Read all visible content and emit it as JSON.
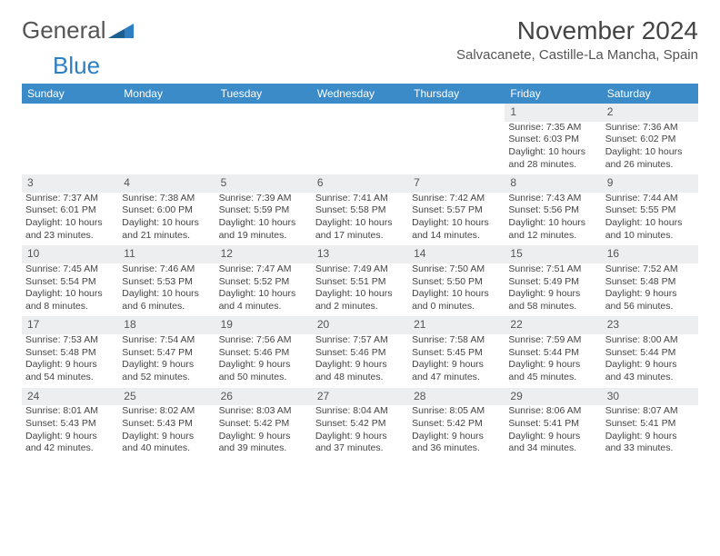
{
  "logo": {
    "word1": "General",
    "word2": "Blue",
    "fill_color": "#2d7fc1",
    "text_color_gray": "#555555"
  },
  "header": {
    "month": "November 2024",
    "location": "Salvacanete, Castille-La Mancha, Spain"
  },
  "colors": {
    "header_bg": "#3b8bc9",
    "header_fg": "#ffffff",
    "daynum_bg": "#eceef0",
    "body_text": "#444444"
  },
  "weekdays": [
    "Sunday",
    "Monday",
    "Tuesday",
    "Wednesday",
    "Thursday",
    "Friday",
    "Saturday"
  ],
  "weeks": [
    [
      null,
      null,
      null,
      null,
      null,
      {
        "n": "1",
        "sunrise": "Sunrise: 7:35 AM",
        "sunset": "Sunset: 6:03 PM",
        "day1": "Daylight: 10 hours",
        "day2": "and 28 minutes."
      },
      {
        "n": "2",
        "sunrise": "Sunrise: 7:36 AM",
        "sunset": "Sunset: 6:02 PM",
        "day1": "Daylight: 10 hours",
        "day2": "and 26 minutes."
      }
    ],
    [
      {
        "n": "3",
        "sunrise": "Sunrise: 7:37 AM",
        "sunset": "Sunset: 6:01 PM",
        "day1": "Daylight: 10 hours",
        "day2": "and 23 minutes."
      },
      {
        "n": "4",
        "sunrise": "Sunrise: 7:38 AM",
        "sunset": "Sunset: 6:00 PM",
        "day1": "Daylight: 10 hours",
        "day2": "and 21 minutes."
      },
      {
        "n": "5",
        "sunrise": "Sunrise: 7:39 AM",
        "sunset": "Sunset: 5:59 PM",
        "day1": "Daylight: 10 hours",
        "day2": "and 19 minutes."
      },
      {
        "n": "6",
        "sunrise": "Sunrise: 7:41 AM",
        "sunset": "Sunset: 5:58 PM",
        "day1": "Daylight: 10 hours",
        "day2": "and 17 minutes."
      },
      {
        "n": "7",
        "sunrise": "Sunrise: 7:42 AM",
        "sunset": "Sunset: 5:57 PM",
        "day1": "Daylight: 10 hours",
        "day2": "and 14 minutes."
      },
      {
        "n": "8",
        "sunrise": "Sunrise: 7:43 AM",
        "sunset": "Sunset: 5:56 PM",
        "day1": "Daylight: 10 hours",
        "day2": "and 12 minutes."
      },
      {
        "n": "9",
        "sunrise": "Sunrise: 7:44 AM",
        "sunset": "Sunset: 5:55 PM",
        "day1": "Daylight: 10 hours",
        "day2": "and 10 minutes."
      }
    ],
    [
      {
        "n": "10",
        "sunrise": "Sunrise: 7:45 AM",
        "sunset": "Sunset: 5:54 PM",
        "day1": "Daylight: 10 hours",
        "day2": "and 8 minutes."
      },
      {
        "n": "11",
        "sunrise": "Sunrise: 7:46 AM",
        "sunset": "Sunset: 5:53 PM",
        "day1": "Daylight: 10 hours",
        "day2": "and 6 minutes."
      },
      {
        "n": "12",
        "sunrise": "Sunrise: 7:47 AM",
        "sunset": "Sunset: 5:52 PM",
        "day1": "Daylight: 10 hours",
        "day2": "and 4 minutes."
      },
      {
        "n": "13",
        "sunrise": "Sunrise: 7:49 AM",
        "sunset": "Sunset: 5:51 PM",
        "day1": "Daylight: 10 hours",
        "day2": "and 2 minutes."
      },
      {
        "n": "14",
        "sunrise": "Sunrise: 7:50 AM",
        "sunset": "Sunset: 5:50 PM",
        "day1": "Daylight: 10 hours",
        "day2": "and 0 minutes."
      },
      {
        "n": "15",
        "sunrise": "Sunrise: 7:51 AM",
        "sunset": "Sunset: 5:49 PM",
        "day1": "Daylight: 9 hours",
        "day2": "and 58 minutes."
      },
      {
        "n": "16",
        "sunrise": "Sunrise: 7:52 AM",
        "sunset": "Sunset: 5:48 PM",
        "day1": "Daylight: 9 hours",
        "day2": "and 56 minutes."
      }
    ],
    [
      {
        "n": "17",
        "sunrise": "Sunrise: 7:53 AM",
        "sunset": "Sunset: 5:48 PM",
        "day1": "Daylight: 9 hours",
        "day2": "and 54 minutes."
      },
      {
        "n": "18",
        "sunrise": "Sunrise: 7:54 AM",
        "sunset": "Sunset: 5:47 PM",
        "day1": "Daylight: 9 hours",
        "day2": "and 52 minutes."
      },
      {
        "n": "19",
        "sunrise": "Sunrise: 7:56 AM",
        "sunset": "Sunset: 5:46 PM",
        "day1": "Daylight: 9 hours",
        "day2": "and 50 minutes."
      },
      {
        "n": "20",
        "sunrise": "Sunrise: 7:57 AM",
        "sunset": "Sunset: 5:46 PM",
        "day1": "Daylight: 9 hours",
        "day2": "and 48 minutes."
      },
      {
        "n": "21",
        "sunrise": "Sunrise: 7:58 AM",
        "sunset": "Sunset: 5:45 PM",
        "day1": "Daylight: 9 hours",
        "day2": "and 47 minutes."
      },
      {
        "n": "22",
        "sunrise": "Sunrise: 7:59 AM",
        "sunset": "Sunset: 5:44 PM",
        "day1": "Daylight: 9 hours",
        "day2": "and 45 minutes."
      },
      {
        "n": "23",
        "sunrise": "Sunrise: 8:00 AM",
        "sunset": "Sunset: 5:44 PM",
        "day1": "Daylight: 9 hours",
        "day2": "and 43 minutes."
      }
    ],
    [
      {
        "n": "24",
        "sunrise": "Sunrise: 8:01 AM",
        "sunset": "Sunset: 5:43 PM",
        "day1": "Daylight: 9 hours",
        "day2": "and 42 minutes."
      },
      {
        "n": "25",
        "sunrise": "Sunrise: 8:02 AM",
        "sunset": "Sunset: 5:43 PM",
        "day1": "Daylight: 9 hours",
        "day2": "and 40 minutes."
      },
      {
        "n": "26",
        "sunrise": "Sunrise: 8:03 AM",
        "sunset": "Sunset: 5:42 PM",
        "day1": "Daylight: 9 hours",
        "day2": "and 39 minutes."
      },
      {
        "n": "27",
        "sunrise": "Sunrise: 8:04 AM",
        "sunset": "Sunset: 5:42 PM",
        "day1": "Daylight: 9 hours",
        "day2": "and 37 minutes."
      },
      {
        "n": "28",
        "sunrise": "Sunrise: 8:05 AM",
        "sunset": "Sunset: 5:42 PM",
        "day1": "Daylight: 9 hours",
        "day2": "and 36 minutes."
      },
      {
        "n": "29",
        "sunrise": "Sunrise: 8:06 AM",
        "sunset": "Sunset: 5:41 PM",
        "day1": "Daylight: 9 hours",
        "day2": "and 34 minutes."
      },
      {
        "n": "30",
        "sunrise": "Sunrise: 8:07 AM",
        "sunset": "Sunset: 5:41 PM",
        "day1": "Daylight: 9 hours",
        "day2": "and 33 minutes."
      }
    ]
  ]
}
